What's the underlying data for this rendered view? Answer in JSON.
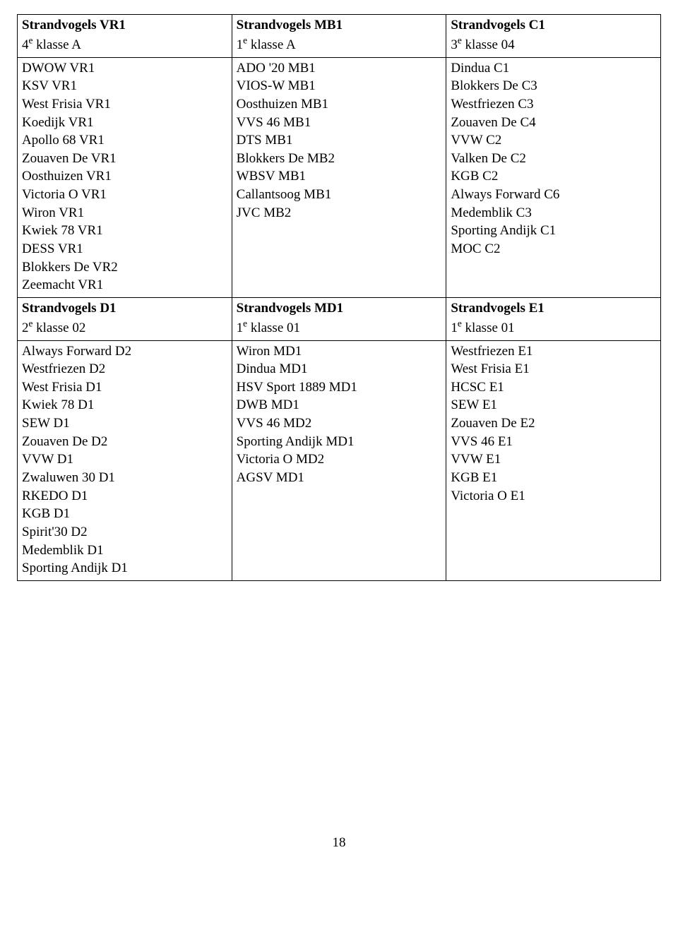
{
  "page_number": "18",
  "cells": {
    "r1c1_title": "Strandvogels VR1",
    "r1c1_sub_pre": "4",
    "r1c1_sub_post": " klasse A",
    "r1c2_title": "Strandvogels MB1",
    "r1c2_sub_pre": "1",
    "r1c2_sub_post": " klasse A",
    "r1c3_title": "Strandvogels C1",
    "r1c3_sub_pre": "3",
    "r1c3_sub_post": " klasse 04",
    "r2c1": [
      "DWOW VR1",
      "KSV VR1",
      "West Frisia VR1",
      "Koedijk VR1",
      "Apollo 68 VR1",
      "Zouaven De VR1",
      "Oosthuizen VR1",
      "Victoria O VR1",
      "Wiron VR1",
      "Kwiek 78 VR1",
      "DESS VR1",
      "Blokkers De VR2",
      "Zeemacht VR1"
    ],
    "r2c2": [
      "ADO '20 MB1",
      "VIOS-W MB1",
      "Oosthuizen MB1",
      "VVS 46 MB1",
      "DTS MB1",
      "Blokkers De MB2",
      "WBSV MB1",
      "Callantsoog MB1",
      "JVC MB2"
    ],
    "r2c3": [
      "Dindua C1",
      "Blokkers De C3",
      "Westfriezen C3",
      "Zouaven De C4",
      "VVW C2",
      "Valken De C2",
      "KGB C2",
      "Always Forward C6",
      "Medemblik C3",
      "Sporting Andijk C1",
      "MOC C2"
    ],
    "r3c1_title": "Strandvogels D1",
    "r3c1_sub_pre": "2",
    "r3c1_sub_post": " klasse 02",
    "r3c2_title": "Strandvogels MD1",
    "r3c2_sub_pre": "1",
    "r3c2_sub_post": " klasse 01",
    "r3c3_title": "Strandvogels E1",
    "r3c3_sub_pre": "1",
    "r3c3_sub_post": " klasse 01",
    "r4c1": [
      "Always Forward D2",
      "Westfriezen D2",
      "West Frisia D1",
      "Kwiek 78 D1",
      "SEW D1",
      "Zouaven De D2",
      "VVW D1",
      "Zwaluwen 30 D1",
      "RKEDO D1",
      "KGB D1",
      "Spirit'30 D2",
      "Medemblik D1",
      "Sporting Andijk D1"
    ],
    "r4c2": [
      "Wiron MD1",
      "Dindua MD1",
      "HSV Sport 1889 MD1",
      "DWB MD1",
      "VVS 46 MD2",
      "Sporting Andijk MD1",
      "Victoria O MD2",
      "AGSV MD1"
    ],
    "r4c3": [
      "Westfriezen E1",
      "West Frisia E1",
      "HCSC E1",
      "SEW E1",
      "Zouaven De E2",
      "VVS 46 E1",
      "VVW E1",
      "KGB E1",
      "Victoria O E1"
    ]
  }
}
